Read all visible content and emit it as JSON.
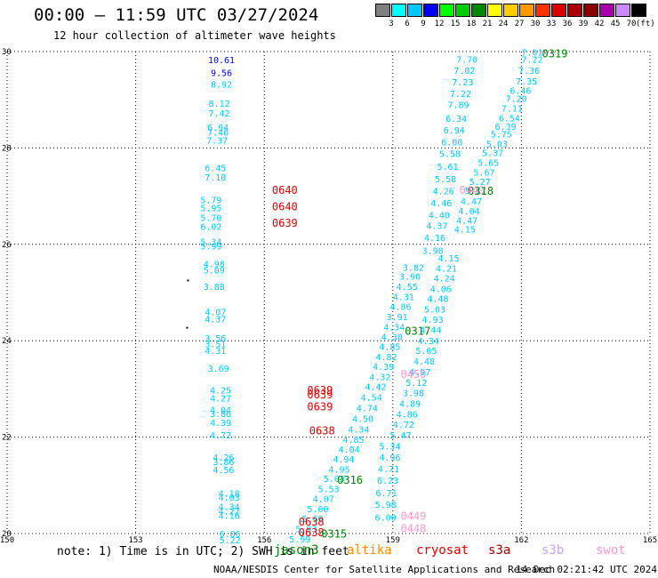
{
  "header": {
    "title": "00:00 — 11:59 UTC 03/27/2024",
    "subtitle": "12 hour collection of altimeter wave heights"
  },
  "legend": {
    "bins": [
      {
        "label": "",
        "color": "#808080"
      },
      {
        "label": "3",
        "color": "#00ffff"
      },
      {
        "label": "6",
        "color": "#00c8ff"
      },
      {
        "label": "9",
        "color": "#0000ff"
      },
      {
        "label": "12",
        "color": "#00ff00"
      },
      {
        "label": "15",
        "color": "#00cc00"
      },
      {
        "label": "18",
        "color": "#008800"
      },
      {
        "label": "21",
        "color": "#ffff00"
      },
      {
        "label": "24",
        "color": "#ffcc00"
      },
      {
        "label": "27",
        "color": "#ff9900"
      },
      {
        "label": "30",
        "color": "#ff3300"
      },
      {
        "label": "33",
        "color": "#dd0000"
      },
      {
        "label": "36",
        "color": "#aa0000"
      },
      {
        "label": "39",
        "color": "#880000"
      },
      {
        "label": "42",
        "color": "#aa00aa"
      },
      {
        "label": "45",
        "color": "#cc88ff"
      },
      {
        "label": "70",
        "color": "#000000"
      }
    ],
    "unit": "(ft)"
  },
  "footer": {
    "note": "note: 1) Time is in UTC; 2) SWH is in feet",
    "satellites": [
      {
        "name": "jason3",
        "color": "#008000"
      },
      {
        "name": "altika",
        "color": "#ff8c00"
      },
      {
        "name": "cryosat",
        "color": "#e00000"
      },
      {
        "name": "s3a",
        "color": "#a00000"
      },
      {
        "name": "s3b",
        "color": "#c8a0ff"
      },
      {
        "name": "swot",
        "color": "#ff99cc"
      }
    ],
    "credit": "NOAA/NESDIS Center for Satellite Applications and Research",
    "timestamp": "14 Dec 02:21:42 UTC 2024"
  },
  "chart_data": {
    "type": "scatter",
    "xlim": [
      150,
      165
    ],
    "ylim": [
      20,
      30
    ],
    "xticks": [
      "150",
      "153",
      "156",
      "159",
      "162",
      "165"
    ],
    "yticks": [
      "20",
      "22",
      "24",
      "26",
      "28",
      "30"
    ],
    "grid": true,
    "value_color": "#00c8ff",
    "value_color_dark": "#0000ff",
    "values": [
      {
        "x": 155.0,
        "y": 29.83,
        "t": "10.61",
        "dark": true
      },
      {
        "x": 155.0,
        "y": 29.57,
        "t": "9.56",
        "dark": true
      },
      {
        "x": 155.0,
        "y": 29.33,
        "t": "8.92"
      },
      {
        "x": 154.95,
        "y": 28.93,
        "t": "8.12"
      },
      {
        "x": 154.95,
        "y": 28.73,
        "t": "7.42"
      },
      {
        "x": 154.92,
        "y": 28.43,
        "t": "6.94"
      },
      {
        "x": 154.92,
        "y": 28.33,
        "t": "7.40"
      },
      {
        "x": 154.9,
        "y": 28.16,
        "t": "7.37"
      },
      {
        "x": 154.86,
        "y": 27.59,
        "t": "6.45"
      },
      {
        "x": 154.86,
        "y": 27.4,
        "t": "7.10"
      },
      {
        "x": 154.76,
        "y": 26.93,
        "t": "5.79"
      },
      {
        "x": 154.76,
        "y": 26.76,
        "t": "5.95"
      },
      {
        "x": 154.76,
        "y": 26.56,
        "t": "5.70"
      },
      {
        "x": 154.76,
        "y": 26.37,
        "t": "6.02"
      },
      {
        "x": 154.76,
        "y": 26.06,
        "t": "5.34"
      },
      {
        "x": 154.76,
        "y": 25.97,
        "t": "5.99"
      },
      {
        "x": 154.83,
        "y": 25.6,
        "t": "4.98"
      },
      {
        "x": 154.83,
        "y": 25.47,
        "t": "5.09"
      },
      {
        "x": 154.83,
        "y": 25.13,
        "t": "3.88"
      },
      {
        "x": 154.86,
        "y": 24.6,
        "t": "4.07"
      },
      {
        "x": 154.86,
        "y": 24.46,
        "t": "4.37"
      },
      {
        "x": 154.86,
        "y": 24.06,
        "t": "3.56"
      },
      {
        "x": 154.86,
        "y": 23.94,
        "t": "3.51"
      },
      {
        "x": 154.86,
        "y": 23.8,
        "t": "4.31"
      },
      {
        "x": 154.93,
        "y": 23.43,
        "t": "3.69"
      },
      {
        "x": 154.98,
        "y": 22.98,
        "t": "4.25"
      },
      {
        "x": 154.98,
        "y": 22.81,
        "t": "4.27"
      },
      {
        "x": 154.98,
        "y": 22.57,
        "t": "4.04"
      },
      {
        "x": 154.98,
        "y": 22.49,
        "t": "3.86"
      },
      {
        "x": 154.98,
        "y": 22.31,
        "t": "4.39"
      },
      {
        "x": 154.98,
        "y": 22.05,
        "t": "4.72"
      },
      {
        "x": 155.05,
        "y": 21.59,
        "t": "4.26"
      },
      {
        "x": 155.05,
        "y": 21.49,
        "t": "3.86"
      },
      {
        "x": 155.05,
        "y": 21.33,
        "t": "4.56"
      },
      {
        "x": 155.18,
        "y": 20.84,
        "t": "4.18"
      },
      {
        "x": 155.18,
        "y": 20.76,
        "t": "4.03"
      },
      {
        "x": 155.18,
        "y": 20.56,
        "t": "4.34"
      },
      {
        "x": 155.18,
        "y": 20.47,
        "t": "4.22"
      },
      {
        "x": 155.18,
        "y": 20.38,
        "t": "4.16"
      },
      {
        "x": 155.2,
        "y": 20.0,
        "t": "6.06"
      },
      {
        "x": 155.2,
        "y": 19.87,
        "t": "5.22"
      },
      {
        "x": 162.25,
        "y": 29.99,
        "t": "7.01"
      },
      {
        "x": 162.25,
        "y": 29.84,
        "t": "7.22"
      },
      {
        "x": 162.18,
        "y": 29.61,
        "t": "7.36"
      },
      {
        "x": 162.12,
        "y": 29.39,
        "t": "7.35"
      },
      {
        "x": 161.98,
        "y": 29.2,
        "t": "6.46"
      },
      {
        "x": 161.88,
        "y": 29.03,
        "t": "7.20"
      },
      {
        "x": 161.78,
        "y": 28.83,
        "t": "7.11"
      },
      {
        "x": 161.72,
        "y": 28.63,
        "t": "6.54"
      },
      {
        "x": 161.63,
        "y": 28.45,
        "t": "6.39"
      },
      {
        "x": 161.53,
        "y": 28.29,
        "t": "5.75"
      },
      {
        "x": 161.43,
        "y": 28.09,
        "t": "5.03"
      },
      {
        "x": 161.33,
        "y": 27.91,
        "t": "5.37"
      },
      {
        "x": 161.23,
        "y": 27.7,
        "t": "5.65"
      },
      {
        "x": 161.13,
        "y": 27.5,
        "t": "5.67"
      },
      {
        "x": 161.03,
        "y": 27.31,
        "t": "5.27"
      },
      {
        "x": 160.93,
        "y": 27.12,
        "t": "5.17"
      },
      {
        "x": 160.83,
        "y": 26.9,
        "t": "4.47"
      },
      {
        "x": 160.78,
        "y": 26.7,
        "t": "4.04"
      },
      {
        "x": 160.73,
        "y": 26.5,
        "t": "4.47"
      },
      {
        "x": 160.68,
        "y": 26.32,
        "t": "4.15"
      },
      {
        "x": 160.73,
        "y": 29.84,
        "t": "7.70"
      },
      {
        "x": 160.67,
        "y": 29.61,
        "t": "7.02"
      },
      {
        "x": 160.63,
        "y": 29.37,
        "t": "7.23"
      },
      {
        "x": 160.58,
        "y": 29.13,
        "t": "7.22"
      },
      {
        "x": 160.53,
        "y": 28.9,
        "t": "7.89"
      },
      {
        "x": 160.48,
        "y": 28.62,
        "t": "6.34"
      },
      {
        "x": 160.43,
        "y": 28.38,
        "t": "6.94"
      },
      {
        "x": 160.38,
        "y": 28.13,
        "t": "6.00"
      },
      {
        "x": 160.33,
        "y": 27.89,
        "t": "5.58"
      },
      {
        "x": 160.28,
        "y": 27.62,
        "t": "5.61"
      },
      {
        "x": 160.23,
        "y": 27.36,
        "t": "5.58"
      },
      {
        "x": 160.18,
        "y": 27.11,
        "t": "4.26"
      },
      {
        "x": 160.13,
        "y": 26.86,
        "t": "4.46"
      },
      {
        "x": 160.08,
        "y": 26.61,
        "t": "4.40"
      },
      {
        "x": 160.03,
        "y": 26.39,
        "t": "4.37"
      },
      {
        "x": 159.98,
        "y": 26.14,
        "t": "4.16"
      },
      {
        "x": 159.93,
        "y": 25.88,
        "t": "3.98"
      },
      {
        "x": 160.3,
        "y": 25.72,
        "t": "4.15"
      },
      {
        "x": 160.25,
        "y": 25.51,
        "t": "4.21"
      },
      {
        "x": 160.2,
        "y": 25.3,
        "t": "4.24"
      },
      {
        "x": 160.12,
        "y": 25.08,
        "t": "4.06"
      },
      {
        "x": 160.05,
        "y": 24.88,
        "t": "4.48"
      },
      {
        "x": 159.98,
        "y": 24.66,
        "t": "5.03"
      },
      {
        "x": 159.93,
        "y": 24.45,
        "t": "4.93"
      },
      {
        "x": 159.88,
        "y": 24.23,
        "t": "4.44"
      },
      {
        "x": 159.83,
        "y": 24.0,
        "t": "4.34"
      },
      {
        "x": 159.78,
        "y": 23.8,
        "t": "5.05"
      },
      {
        "x": 159.73,
        "y": 23.58,
        "t": "4.48"
      },
      {
        "x": 159.63,
        "y": 23.36,
        "t": "4.97"
      },
      {
        "x": 159.55,
        "y": 23.14,
        "t": "5.12"
      },
      {
        "x": 159.48,
        "y": 22.92,
        "t": "3.98"
      },
      {
        "x": 159.4,
        "y": 22.7,
        "t": "4.89"
      },
      {
        "x": 159.33,
        "y": 22.48,
        "t": "4.86"
      },
      {
        "x": 159.25,
        "y": 22.27,
        "t": "4.72"
      },
      {
        "x": 159.18,
        "y": 22.05,
        "t": "5.47"
      },
      {
        "x": 159.48,
        "y": 25.53,
        "t": "3.82"
      },
      {
        "x": 159.4,
        "y": 25.34,
        "t": "3.90"
      },
      {
        "x": 159.33,
        "y": 25.13,
        "t": "4.55"
      },
      {
        "x": 159.25,
        "y": 24.92,
        "t": "4.31"
      },
      {
        "x": 159.18,
        "y": 24.71,
        "t": "4.86"
      },
      {
        "x": 159.1,
        "y": 24.5,
        "t": "3.91"
      },
      {
        "x": 159.03,
        "y": 24.29,
        "t": "4.34"
      },
      {
        "x": 158.98,
        "y": 24.09,
        "t": "4.30"
      },
      {
        "x": 158.93,
        "y": 23.88,
        "t": "4.85"
      },
      {
        "x": 158.85,
        "y": 23.67,
        "t": "4.82"
      },
      {
        "x": 158.78,
        "y": 23.47,
        "t": "4.39"
      },
      {
        "x": 158.7,
        "y": 23.26,
        "t": "4.32"
      },
      {
        "x": 158.6,
        "y": 23.05,
        "t": "4.42"
      },
      {
        "x": 158.5,
        "y": 22.83,
        "t": "4.54"
      },
      {
        "x": 158.4,
        "y": 22.61,
        "t": "4.74"
      },
      {
        "x": 158.3,
        "y": 22.39,
        "t": "4.50"
      },
      {
        "x": 158.2,
        "y": 22.17,
        "t": "4.34"
      },
      {
        "x": 158.08,
        "y": 21.96,
        "t": "4.85"
      },
      {
        "x": 157.98,
        "y": 21.75,
        "t": "4.04"
      },
      {
        "x": 157.85,
        "y": 21.55,
        "t": "4.94"
      },
      {
        "x": 157.75,
        "y": 21.34,
        "t": "4.95"
      },
      {
        "x": 157.63,
        "y": 21.14,
        "t": "5.03"
      },
      {
        "x": 157.5,
        "y": 20.93,
        "t": "5.53"
      },
      {
        "x": 157.38,
        "y": 20.73,
        "t": "4.07"
      },
      {
        "x": 157.25,
        "y": 20.52,
        "t": "5.00"
      },
      {
        "x": 157.13,
        "y": 20.31,
        "t": "5.69"
      },
      {
        "x": 156.98,
        "y": 20.1,
        "t": "5.93"
      },
      {
        "x": 156.83,
        "y": 19.89,
        "t": "5.99"
      },
      {
        "x": 158.93,
        "y": 21.82,
        "t": "5.34"
      },
      {
        "x": 158.93,
        "y": 21.59,
        "t": "4.96"
      },
      {
        "x": 158.9,
        "y": 21.35,
        "t": "4.71"
      },
      {
        "x": 158.88,
        "y": 21.11,
        "t": "6.23"
      },
      {
        "x": 158.85,
        "y": 20.85,
        "t": "6.71"
      },
      {
        "x": 158.83,
        "y": 20.61,
        "t": "5.98"
      },
      {
        "x": 158.83,
        "y": 20.34,
        "t": "6.00"
      }
    ],
    "passes": [
      {
        "x": 162.48,
        "y": 29.95,
        "t": "0319",
        "color": "#008000"
      },
      {
        "x": 160.75,
        "y": 27.1,
        "t": "0318",
        "color": "#008000"
      },
      {
        "x": 160.55,
        "y": 27.12,
        "t": "0449",
        "color": "#ff99cc"
      },
      {
        "x": 156.18,
        "y": 27.12,
        "t": "0640",
        "color": "#e00000"
      },
      {
        "x": 156.18,
        "y": 26.78,
        "t": "0640",
        "color": "#e00000"
      },
      {
        "x": 156.18,
        "y": 26.44,
        "t": "0639",
        "color": "#e00000"
      },
      {
        "x": 157.0,
        "y": 22.97,
        "t": "0639",
        "color": "#e00000"
      },
      {
        "x": 157.0,
        "y": 22.88,
        "t": "0639",
        "color": "#e00000"
      },
      {
        "x": 157.0,
        "y": 22.63,
        "t": "0639",
        "color": "#e00000"
      },
      {
        "x": 157.05,
        "y": 22.13,
        "t": "0638",
        "color": "#e00000"
      },
      {
        "x": 156.8,
        "y": 20.24,
        "t": "0638",
        "color": "#e00000"
      },
      {
        "x": 156.8,
        "y": 20.02,
        "t": "0638",
        "color": "#e00000"
      },
      {
        "x": 159.28,
        "y": 24.2,
        "t": "0317",
        "color": "#008000"
      },
      {
        "x": 159.18,
        "y": 23.3,
        "t": "0450",
        "color": "#ff99cc"
      },
      {
        "x": 157.7,
        "y": 21.11,
        "t": "0316",
        "color": "#008000"
      },
      {
        "x": 157.33,
        "y": 19.99,
        "t": "0315",
        "color": "#008000"
      },
      {
        "x": 159.18,
        "y": 20.36,
        "t": "0449",
        "color": "#ff99cc"
      },
      {
        "x": 159.18,
        "y": 20.1,
        "t": "0448",
        "color": "#ff99cc"
      }
    ],
    "markers": [
      {
        "x": 154.22,
        "y": 25.25
      },
      {
        "x": 154.2,
        "y": 24.27
      }
    ]
  }
}
